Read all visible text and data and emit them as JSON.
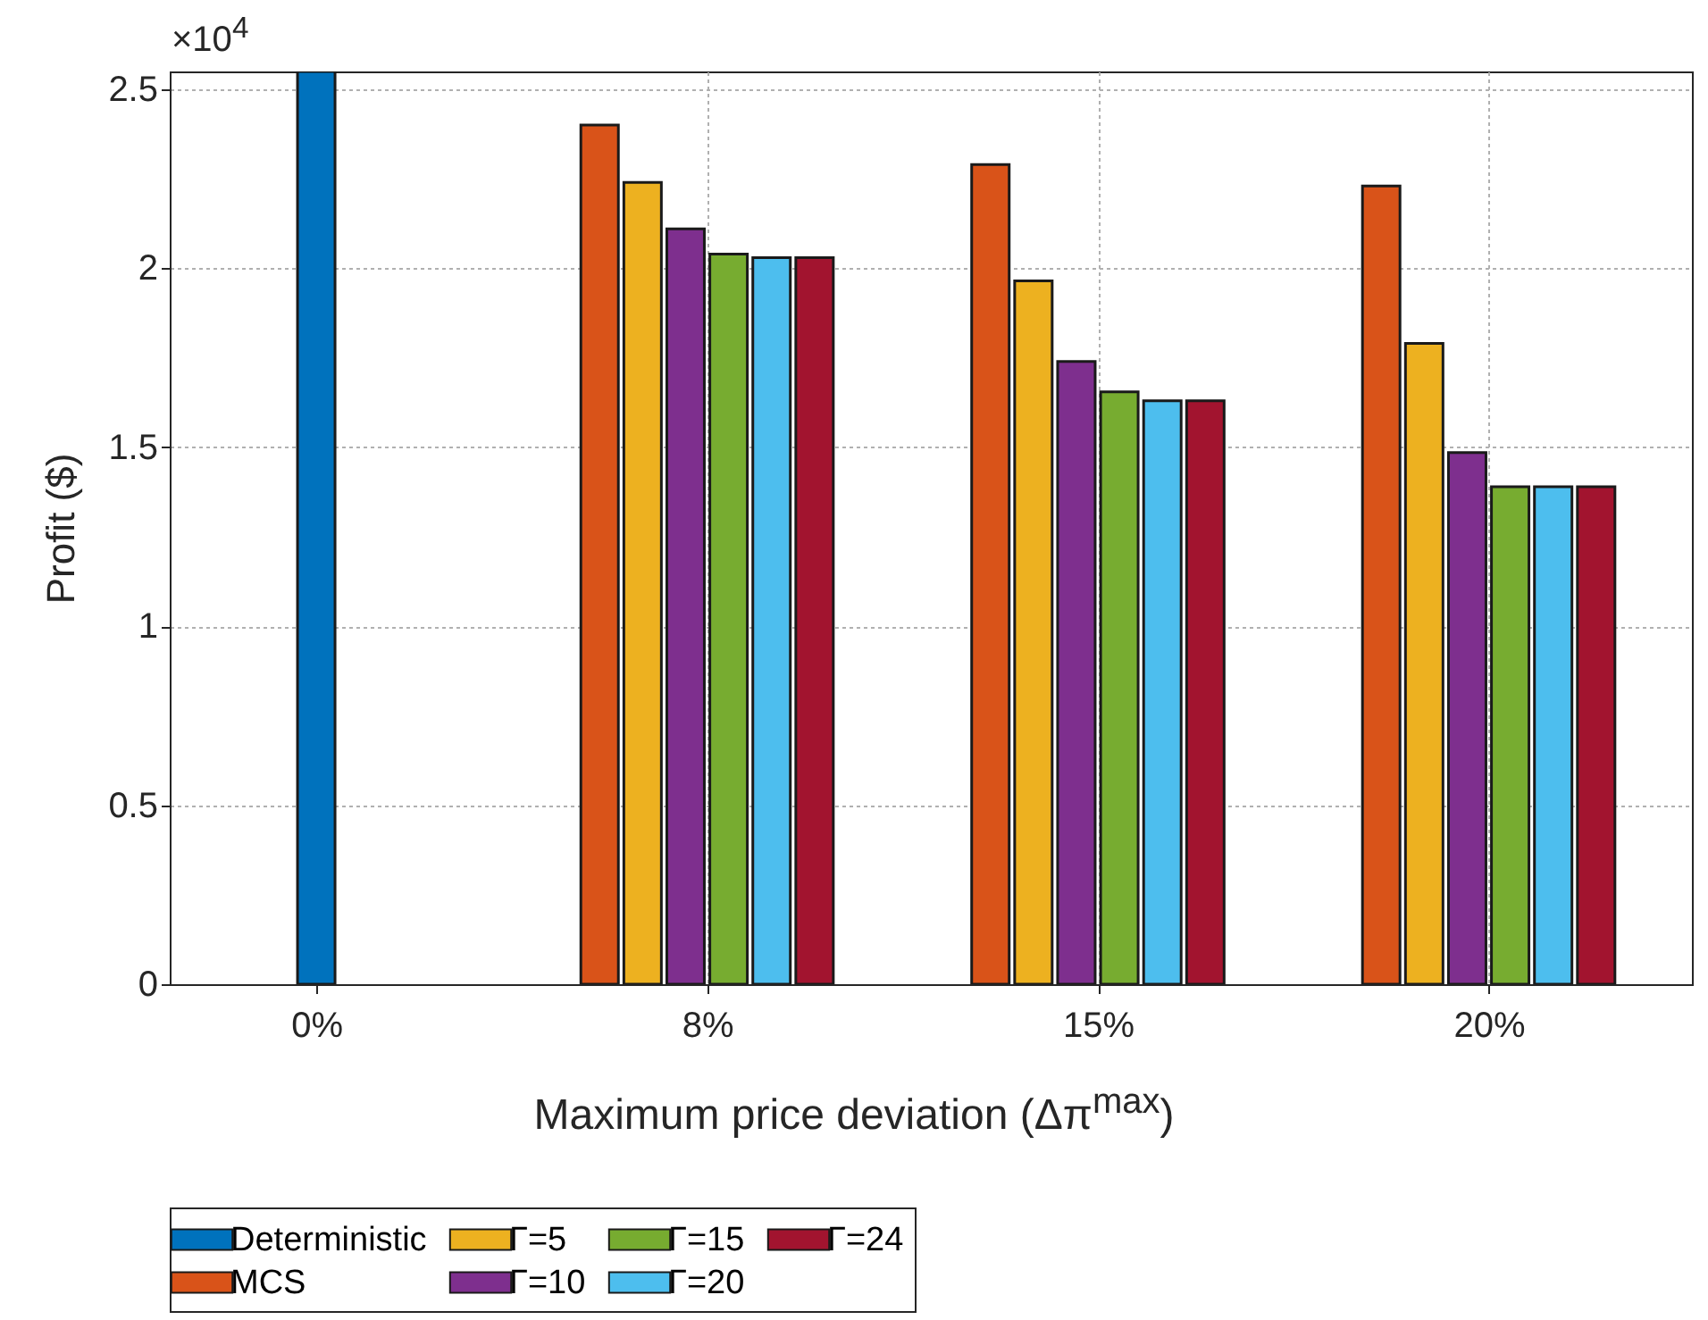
{
  "chart_data": {
    "type": "bar",
    "xlabel": "Maximum price deviation (Δπ$^{max}$)",
    "ylabel": "Profit ($)",
    "annotations": [
      "×10$^{4}$"
    ],
    "categories": [
      "0%",
      "8%",
      "15%",
      "20%"
    ],
    "series": [
      {
        "name": "Deterministic",
        "color": "#0072bd",
        "values": [
          2.55,
          null,
          null,
          null
        ]
      },
      {
        "name": "MCS",
        "color": "#d95319",
        "values": [
          null,
          2.4,
          2.29,
          2.23
        ]
      },
      {
        "name": "Γ=5",
        "color": "#edb120",
        "values": [
          null,
          2.24,
          1.965,
          1.79
        ]
      },
      {
        "name": "Γ=10",
        "color": "#7e2f8e",
        "values": [
          null,
          2.11,
          1.74,
          1.485
        ]
      },
      {
        "name": "Γ=15",
        "color": "#77ac30",
        "values": [
          null,
          2.04,
          1.655,
          1.39
        ]
      },
      {
        "name": "Γ=20",
        "color": "#4dbeee",
        "values": [
          null,
          2.03,
          1.63,
          1.39
        ]
      },
      {
        "name": "Γ=24",
        "color": "#a2142f",
        "values": [
          null,
          2.03,
          1.63,
          1.39
        ]
      }
    ],
    "ylim": [
      0,
      2.55
    ],
    "yticks": [
      0,
      0.5,
      1,
      1.5,
      2,
      2.5
    ],
    "grid": true,
    "legend": "bottom"
  }
}
